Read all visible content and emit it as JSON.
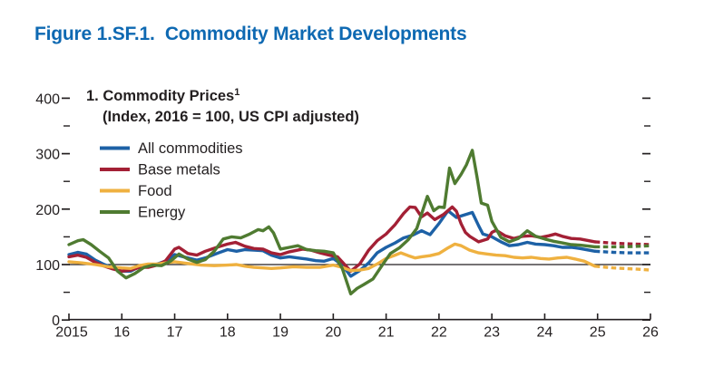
{
  "figure_title": "Figure 1.SF.1.  Commodity Market Developments",
  "colors": {
    "title_blue": "#0e69b2",
    "text": "#231f20",
    "all_commodities": "#1d61a6",
    "base_metals": "#a32035",
    "food": "#efb140",
    "energy": "#4f7b31"
  },
  "chart_data": {
    "type": "line",
    "title": "1. Commodity Prices",
    "title_superscript": "1",
    "subtitle": "(Index, 2016 = 100, US CPI adjusted)",
    "xlabel": "",
    "ylabel": "",
    "xlim": [
      2015,
      2026
    ],
    "ylim": [
      0,
      400
    ],
    "grid": false,
    "legend_position": "top-left",
    "reference_line": 100,
    "projection_start": 2024.95,
    "projection_style": "dashed",
    "y_major_ticks": [
      {
        "value": 0,
        "label": "0"
      },
      {
        "value": 100,
        "label": "100"
      },
      {
        "value": 200,
        "label": "200"
      },
      {
        "value": 300,
        "label": "300"
      },
      {
        "value": 400,
        "label": "400"
      }
    ],
    "y_minor_ticks": [
      50,
      150,
      250,
      350
    ],
    "x_ticks": [
      {
        "value": 2015,
        "label": "2015"
      },
      {
        "value": 2016,
        "label": "16"
      },
      {
        "value": 2017,
        "label": "17"
      },
      {
        "value": 2018,
        "label": "18"
      },
      {
        "value": 2019,
        "label": "19"
      },
      {
        "value": 2020,
        "label": "20"
      },
      {
        "value": 2021,
        "label": "21"
      },
      {
        "value": 2022,
        "label": "22"
      },
      {
        "value": 2023,
        "label": "23"
      },
      {
        "value": 2024,
        "label": "24"
      },
      {
        "value": 2025,
        "label": "25"
      },
      {
        "value": 2026,
        "label": "26"
      }
    ],
    "series": [
      {
        "name": "All commodities",
        "color": "#1d61a6",
        "points": [
          [
            2015.0,
            118
          ],
          [
            2015.17,
            122
          ],
          [
            2015.33,
            119
          ],
          [
            2015.5,
            108
          ],
          [
            2015.67,
            100
          ],
          [
            2015.83,
            94
          ],
          [
            2016.0,
            88
          ],
          [
            2016.17,
            88
          ],
          [
            2016.33,
            96
          ],
          [
            2016.5,
            98
          ],
          [
            2016.67,
            101
          ],
          [
            2016.83,
            106
          ],
          [
            2017.0,
            118
          ],
          [
            2017.25,
            112
          ],
          [
            2017.42,
            108
          ],
          [
            2017.58,
            112
          ],
          [
            2017.83,
            121
          ],
          [
            2018.0,
            127
          ],
          [
            2018.17,
            124
          ],
          [
            2018.33,
            127
          ],
          [
            2018.5,
            126
          ],
          [
            2018.67,
            125
          ],
          [
            2018.83,
            117
          ],
          [
            2019.0,
            112
          ],
          [
            2019.17,
            114
          ],
          [
            2019.33,
            112
          ],
          [
            2019.5,
            110
          ],
          [
            2019.67,
            107
          ],
          [
            2019.83,
            106
          ],
          [
            2020.0,
            111
          ],
          [
            2020.17,
            99
          ],
          [
            2020.33,
            79
          ],
          [
            2020.5,
            89
          ],
          [
            2020.67,
            103
          ],
          [
            2020.83,
            121
          ],
          [
            2021.0,
            131
          ],
          [
            2021.17,
            139
          ],
          [
            2021.33,
            148
          ],
          [
            2021.5,
            153
          ],
          [
            2021.67,
            161
          ],
          [
            2021.83,
            154
          ],
          [
            2022.0,
            174
          ],
          [
            2022.17,
            197
          ],
          [
            2022.33,
            185
          ],
          [
            2022.5,
            190
          ],
          [
            2022.63,
            194
          ],
          [
            2022.75,
            170
          ],
          [
            2022.83,
            155
          ],
          [
            2023.0,
            150
          ],
          [
            2023.17,
            141
          ],
          [
            2023.33,
            134
          ],
          [
            2023.5,
            136
          ],
          [
            2023.67,
            140
          ],
          [
            2023.83,
            137
          ],
          [
            2024.0,
            136
          ],
          [
            2024.17,
            134
          ],
          [
            2024.33,
            131
          ],
          [
            2024.5,
            131
          ],
          [
            2024.67,
            129
          ],
          [
            2024.95,
            124
          ],
          [
            2025.3,
            122
          ],
          [
            2025.6,
            121
          ],
          [
            2026.0,
            121
          ]
        ]
      },
      {
        "name": "Base metals",
        "color": "#a32035",
        "points": [
          [
            2015.0,
            114
          ],
          [
            2015.17,
            117
          ],
          [
            2015.33,
            113
          ],
          [
            2015.5,
            104
          ],
          [
            2015.67,
            97
          ],
          [
            2015.83,
            92
          ],
          [
            2016.0,
            88
          ],
          [
            2016.17,
            90
          ],
          [
            2016.33,
            95
          ],
          [
            2016.5,
            95
          ],
          [
            2016.67,
            99
          ],
          [
            2016.83,
            107
          ],
          [
            2017.0,
            128
          ],
          [
            2017.08,
            131
          ],
          [
            2017.25,
            120
          ],
          [
            2017.42,
            117
          ],
          [
            2017.58,
            124
          ],
          [
            2017.83,
            132
          ],
          [
            2018.0,
            137
          ],
          [
            2018.15,
            140
          ],
          [
            2018.33,
            133
          ],
          [
            2018.5,
            129
          ],
          [
            2018.67,
            128
          ],
          [
            2018.83,
            121
          ],
          [
            2019.0,
            118
          ],
          [
            2019.17,
            123
          ],
          [
            2019.42,
            128
          ],
          [
            2019.58,
            126
          ],
          [
            2019.75,
            121
          ],
          [
            2019.92,
            117
          ],
          [
            2020.08,
            114
          ],
          [
            2020.33,
            88
          ],
          [
            2020.5,
            101
          ],
          [
            2020.67,
            126
          ],
          [
            2020.83,
            143
          ],
          [
            2021.0,
            155
          ],
          [
            2021.17,
            172
          ],
          [
            2021.33,
            192
          ],
          [
            2021.45,
            204
          ],
          [
            2021.55,
            203
          ],
          [
            2021.67,
            186
          ],
          [
            2021.78,
            193
          ],
          [
            2021.92,
            181
          ],
          [
            2022.08,
            190
          ],
          [
            2022.25,
            204
          ],
          [
            2022.33,
            196
          ],
          [
            2022.42,
            173
          ],
          [
            2022.5,
            158
          ],
          [
            2022.58,
            151
          ],
          [
            2022.75,
            141
          ],
          [
            2022.92,
            146
          ],
          [
            2023.0,
            158
          ],
          [
            2023.08,
            162
          ],
          [
            2023.25,
            152
          ],
          [
            2023.42,
            147
          ],
          [
            2023.58,
            151
          ],
          [
            2023.75,
            152
          ],
          [
            2023.92,
            149
          ],
          [
            2024.08,
            152
          ],
          [
            2024.2,
            155
          ],
          [
            2024.33,
            151
          ],
          [
            2024.5,
            147
          ],
          [
            2024.67,
            146
          ],
          [
            2024.95,
            141
          ],
          [
            2025.4,
            138
          ],
          [
            2026.0,
            136
          ]
        ]
      },
      {
        "name": "Food",
        "color": "#efb140",
        "points": [
          [
            2015.0,
            105
          ],
          [
            2015.25,
            103
          ],
          [
            2015.5,
            100
          ],
          [
            2015.75,
            96
          ],
          [
            2016.0,
            94
          ],
          [
            2016.17,
            93
          ],
          [
            2016.33,
            98
          ],
          [
            2016.5,
            101
          ],
          [
            2016.67,
            101
          ],
          [
            2016.83,
            103
          ],
          [
            2017.0,
            105
          ],
          [
            2017.25,
            102
          ],
          [
            2017.5,
            99
          ],
          [
            2017.75,
            98
          ],
          [
            2018.0,
            99
          ],
          [
            2018.17,
            100
          ],
          [
            2018.33,
            97
          ],
          [
            2018.5,
            95
          ],
          [
            2018.67,
            94
          ],
          [
            2018.83,
            93
          ],
          [
            2019.0,
            94
          ],
          [
            2019.25,
            96
          ],
          [
            2019.5,
            95
          ],
          [
            2019.75,
            95
          ],
          [
            2020.0,
            99
          ],
          [
            2020.17,
            95
          ],
          [
            2020.33,
            89
          ],
          [
            2020.5,
            90
          ],
          [
            2020.67,
            93
          ],
          [
            2020.83,
            101
          ],
          [
            2021.0,
            111
          ],
          [
            2021.17,
            117
          ],
          [
            2021.28,
            121
          ],
          [
            2021.42,
            116
          ],
          [
            2021.55,
            112
          ],
          [
            2021.67,
            114
          ],
          [
            2021.83,
            116
          ],
          [
            2022.0,
            120
          ],
          [
            2022.17,
            130
          ],
          [
            2022.3,
            137
          ],
          [
            2022.42,
            134
          ],
          [
            2022.58,
            126
          ],
          [
            2022.75,
            121
          ],
          [
            2022.92,
            119
          ],
          [
            2023.08,
            117
          ],
          [
            2023.25,
            116
          ],
          [
            2023.42,
            113
          ],
          [
            2023.58,
            112
          ],
          [
            2023.75,
            113
          ],
          [
            2023.92,
            111
          ],
          [
            2024.08,
            110
          ],
          [
            2024.25,
            112
          ],
          [
            2024.42,
            113
          ],
          [
            2024.58,
            110
          ],
          [
            2024.75,
            106
          ],
          [
            2024.95,
            97
          ],
          [
            2025.3,
            94
          ],
          [
            2025.7,
            92
          ],
          [
            2026.0,
            90
          ]
        ]
      },
      {
        "name": "Energy",
        "color": "#4f7b31",
        "points": [
          [
            2015.0,
            136
          ],
          [
            2015.17,
            143
          ],
          [
            2015.27,
            145
          ],
          [
            2015.42,
            136
          ],
          [
            2015.58,
            124
          ],
          [
            2015.75,
            112
          ],
          [
            2015.92,
            88
          ],
          [
            2016.08,
            76
          ],
          [
            2016.25,
            84
          ],
          [
            2016.42,
            95
          ],
          [
            2016.58,
            99
          ],
          [
            2016.75,
            98
          ],
          [
            2016.92,
            106
          ],
          [
            2017.08,
            119
          ],
          [
            2017.25,
            110
          ],
          [
            2017.42,
            104
          ],
          [
            2017.58,
            109
          ],
          [
            2017.75,
            124
          ],
          [
            2017.92,
            146
          ],
          [
            2018.08,
            150
          ],
          [
            2018.25,
            148
          ],
          [
            2018.42,
            155
          ],
          [
            2018.58,
            163
          ],
          [
            2018.67,
            161
          ],
          [
            2018.78,
            168
          ],
          [
            2018.87,
            157
          ],
          [
            2019.0,
            128
          ],
          [
            2019.17,
            131
          ],
          [
            2019.33,
            134
          ],
          [
            2019.5,
            127
          ],
          [
            2019.67,
            125
          ],
          [
            2019.83,
            124
          ],
          [
            2020.0,
            121
          ],
          [
            2020.17,
            93
          ],
          [
            2020.33,
            47
          ],
          [
            2020.45,
            57
          ],
          [
            2020.58,
            64
          ],
          [
            2020.75,
            74
          ],
          [
            2020.92,
            98
          ],
          [
            2021.08,
            120
          ],
          [
            2021.25,
            130
          ],
          [
            2021.42,
            145
          ],
          [
            2021.58,
            165
          ],
          [
            2021.78,
            223
          ],
          [
            2021.9,
            197
          ],
          [
            2022.0,
            204
          ],
          [
            2022.1,
            203
          ],
          [
            2022.2,
            274
          ],
          [
            2022.3,
            246
          ],
          [
            2022.42,
            263
          ],
          [
            2022.52,
            280
          ],
          [
            2022.63,
            306
          ],
          [
            2022.72,
            258
          ],
          [
            2022.8,
            211
          ],
          [
            2022.92,
            207
          ],
          [
            2023.0,
            178
          ],
          [
            2023.17,
            149
          ],
          [
            2023.33,
            141
          ],
          [
            2023.5,
            147
          ],
          [
            2023.67,
            161
          ],
          [
            2023.83,
            151
          ],
          [
            2024.0,
            146
          ],
          [
            2024.17,
            142
          ],
          [
            2024.33,
            139
          ],
          [
            2024.5,
            136
          ],
          [
            2024.67,
            135
          ],
          [
            2024.95,
            132
          ],
          [
            2025.5,
            132
          ],
          [
            2026.0,
            134
          ]
        ]
      }
    ]
  }
}
